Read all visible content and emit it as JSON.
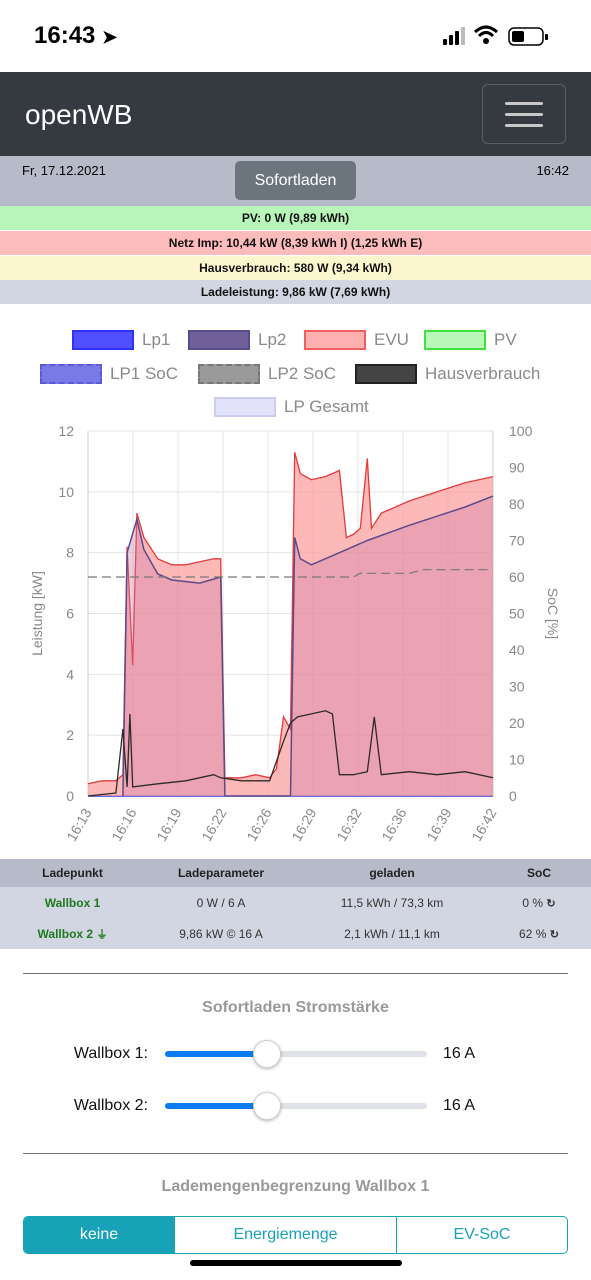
{
  "status_bar": {
    "time": "16:43"
  },
  "navbar": {
    "brand": "openWB"
  },
  "header": {
    "date": "Fr, 17.12.2021",
    "time": "16:42",
    "mode_button": "Sofortladen"
  },
  "summary": {
    "pv": "PV: 0 W (9,89 kWh)",
    "grid": "Netz Imp: 10,44 kW (8,39 kWh I) (1,25 kWh E)",
    "house": "Hausverbrauch: 580 W (9,34 kWh)",
    "charge": "Ladeleistung: 9,86 kW (7,69 kWh)",
    "colors": {
      "pv": "#b8f5b8",
      "grid": "#fdbcbc",
      "house": "#fdf7cf",
      "charge": "#d2d5e2"
    }
  },
  "chart_data": {
    "type": "line",
    "legend": [
      {
        "name": "Lp1",
        "color": "#3030ff"
      },
      {
        "name": "Lp2",
        "color": "#6a5a9a"
      },
      {
        "name": "EVU",
        "color": "#f07070"
      },
      {
        "name": "PV",
        "color": "#6fe06f"
      },
      {
        "name": "LP1 SoC",
        "color": "#7070ee"
      },
      {
        "name": "LP2 SoC",
        "color": "#909090"
      },
      {
        "name": "Hausverbrauch",
        "color": "#3a3a3a"
      },
      {
        "name": "LP Gesamt",
        "color": "#c8c8f5"
      }
    ],
    "ylabel": "Leistung [kW]",
    "y2label": "SoC [%]",
    "ylim": [
      0,
      12
    ],
    "y2lim": [
      0,
      100
    ],
    "yticks": [
      "0",
      "2",
      "4",
      "6",
      "8",
      "10",
      "12"
    ],
    "y2ticks": [
      "0",
      "10",
      "20",
      "30",
      "40",
      "50",
      "60",
      "70",
      "80",
      "90",
      "100"
    ],
    "xticks": [
      "16:13",
      "16:16",
      "16:19",
      "16:22",
      "16:26",
      "16:29",
      "16:32",
      "16:36",
      "16:39",
      "16:42"
    ],
    "series": [
      {
        "name": "EVU",
        "points": [
          [
            16.13,
            0.4
          ],
          [
            16.14,
            0.5
          ],
          [
            16.15,
            0.5
          ],
          [
            16.155,
            0.7
          ],
          [
            16.158,
            8.2
          ],
          [
            16.162,
            4.3
          ],
          [
            16.165,
            9.3
          ],
          [
            16.17,
            8.5
          ],
          [
            16.18,
            7.8
          ],
          [
            16.19,
            7.6
          ],
          [
            16.2,
            7.6
          ],
          [
            16.21,
            7.7
          ],
          [
            16.22,
            7.8
          ],
          [
            16.225,
            7.8
          ],
          [
            16.228,
            0.6
          ],
          [
            16.24,
            0.6
          ],
          [
            16.25,
            0.7
          ],
          [
            16.26,
            0.6
          ],
          [
            16.265,
            0.9
          ],
          [
            16.27,
            2.6
          ],
          [
            16.275,
            2.2
          ],
          [
            16.278,
            11.3
          ],
          [
            16.282,
            10.6
          ],
          [
            16.29,
            10.4
          ],
          [
            16.3,
            10.5
          ],
          [
            16.31,
            10.7
          ],
          [
            16.315,
            8.5
          ],
          [
            16.32,
            8.6
          ],
          [
            16.325,
            8.8
          ],
          [
            16.33,
            11.1
          ],
          [
            16.333,
            8.8
          ],
          [
            16.34,
            9.3
          ],
          [
            16.36,
            9.7
          ],
          [
            16.38,
            10.0
          ],
          [
            16.4,
            10.3
          ],
          [
            16.42,
            10.5
          ]
        ]
      },
      {
        "name": "LP Gesamt",
        "points": [
          [
            16.155,
            0
          ],
          [
            16.158,
            8.0
          ],
          [
            16.165,
            9.1
          ],
          [
            16.17,
            8.1
          ],
          [
            16.18,
            7.3
          ],
          [
            16.19,
            7.1
          ],
          [
            16.21,
            7.0
          ],
          [
            16.225,
            7.2
          ],
          [
            16.228,
            0
          ],
          [
            16.275,
            0
          ],
          [
            16.278,
            8.5
          ],
          [
            16.282,
            7.8
          ],
          [
            16.29,
            7.6
          ],
          [
            16.31,
            8.0
          ],
          [
            16.33,
            8.4
          ],
          [
            16.36,
            8.9
          ],
          [
            16.38,
            9.2
          ],
          [
            16.4,
            9.5
          ],
          [
            16.42,
            9.86
          ]
        ]
      },
      {
        "name": "Lp2",
        "points": [
          [
            16.155,
            0
          ],
          [
            16.158,
            8.0
          ],
          [
            16.165,
            9.1
          ],
          [
            16.17,
            8.1
          ],
          [
            16.18,
            7.3
          ],
          [
            16.19,
            7.1
          ],
          [
            16.21,
            7.0
          ],
          [
            16.225,
            7.2
          ],
          [
            16.228,
            0
          ],
          [
            16.275,
            0
          ],
          [
            16.278,
            8.5
          ],
          [
            16.282,
            7.8
          ],
          [
            16.29,
            7.6
          ],
          [
            16.31,
            8.0
          ],
          [
            16.33,
            8.4
          ],
          [
            16.36,
            8.9
          ],
          [
            16.38,
            9.2
          ],
          [
            16.4,
            9.5
          ],
          [
            16.42,
            9.86
          ]
        ]
      },
      {
        "name": "Hausverbrauch",
        "points": [
          [
            16.13,
            0
          ],
          [
            16.15,
            0.1
          ],
          [
            16.155,
            2.2
          ],
          [
            16.158,
            0.3
          ],
          [
            16.16,
            2.7
          ],
          [
            16.162,
            0.3
          ],
          [
            16.18,
            0.4
          ],
          [
            16.2,
            0.5
          ],
          [
            16.22,
            0.7
          ],
          [
            16.225,
            0.6
          ],
          [
            16.24,
            0.5
          ],
          [
            16.26,
            0.5
          ],
          [
            16.27,
            1.8
          ],
          [
            16.275,
            2.4
          ],
          [
            16.28,
            2.6
          ],
          [
            16.29,
            2.7
          ],
          [
            16.3,
            2.8
          ],
          [
            16.305,
            2.7
          ],
          [
            16.31,
            0.7
          ],
          [
            16.32,
            0.7
          ],
          [
            16.33,
            0.8
          ],
          [
            16.335,
            2.6
          ],
          [
            16.34,
            0.7
          ],
          [
            16.36,
            0.8
          ],
          [
            16.38,
            0.7
          ],
          [
            16.4,
            0.8
          ],
          [
            16.42,
            0.6
          ]
        ]
      },
      {
        "name": "LP2 SoC",
        "points": [
          [
            16.13,
            60
          ],
          [
            16.25,
            60
          ],
          [
            16.32,
            60
          ],
          [
            16.325,
            61
          ],
          [
            16.36,
            61
          ],
          [
            16.37,
            62
          ],
          [
            16.42,
            62
          ]
        ]
      }
    ]
  },
  "table": {
    "headers": [
      "Ladepunkt",
      "Ladeparameter",
      "geladen",
      "SoC"
    ],
    "rows": [
      {
        "name": "Wallbox 1",
        "params": "0 W / 6 A",
        "charged": "11,5 kWh / 73,3 km",
        "soc": "0 %"
      },
      {
        "name": "Wallbox 2",
        "params": "9,86 kW © 16 A",
        "charged": "2,1 kWh / 11,1 km",
        "soc": "62 %"
      }
    ]
  },
  "current_section": {
    "title": "Sofortladen Stromstärke",
    "sliders": [
      {
        "label": "Wallbox 1:",
        "value": "16 A",
        "level": 0.39
      },
      {
        "label": "Wallbox 2:",
        "value": "16 A",
        "level": 0.39
      }
    ]
  },
  "limit_section": {
    "title": "Lademengenbegrenzung Wallbox 1",
    "options": [
      "keine",
      "Energiemenge",
      "EV-SoC"
    ],
    "selected": "keine"
  }
}
